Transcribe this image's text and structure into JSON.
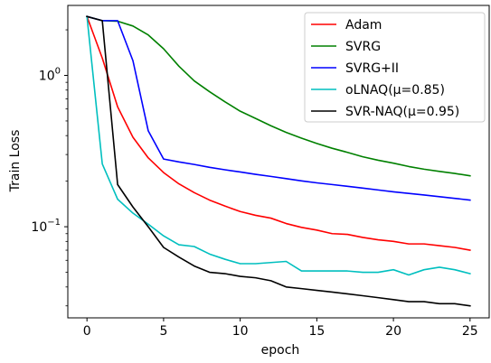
{
  "chart_data": {
    "type": "line",
    "title": "",
    "xlabel": "epoch",
    "ylabel": "Train Loss",
    "xlim": [
      -1.25,
      26.25
    ],
    "ylim": [
      0.025,
      2.9
    ],
    "yscale": "log",
    "grid": false,
    "legend_position": "top-right",
    "x_ticks": [
      0,
      5,
      10,
      15,
      20,
      25
    ],
    "x_tick_labels": [
      "0",
      "5",
      "10",
      "15",
      "20",
      "25"
    ],
    "y_ticks": [
      1,
      0.1
    ],
    "y_tick_labels": [
      {
        "base": "10",
        "exp": "0"
      },
      {
        "base": "10",
        "exp": "−1"
      }
    ],
    "x": [
      0,
      1,
      2,
      3,
      4,
      5,
      6,
      7,
      8,
      9,
      10,
      11,
      12,
      13,
      14,
      15,
      16,
      17,
      18,
      19,
      20,
      21,
      22,
      23,
      24,
      25
    ],
    "series": [
      {
        "name": "Adam",
        "color": "#ff0000",
        "values": [
          2.45,
          1.3,
          0.62,
          0.39,
          0.285,
          0.228,
          0.192,
          0.168,
          0.15,
          0.137,
          0.126,
          0.119,
          0.114,
          0.105,
          0.099,
          0.095,
          0.09,
          0.089,
          0.085,
          0.082,
          0.08,
          0.077,
          0.077,
          0.075,
          0.073,
          0.07
        ]
      },
      {
        "name": "SVRG",
        "color": "#008000",
        "values": [
          2.45,
          2.3,
          2.28,
          2.12,
          1.85,
          1.5,
          1.15,
          0.92,
          0.78,
          0.67,
          0.58,
          0.52,
          0.465,
          0.42,
          0.385,
          0.355,
          0.33,
          0.31,
          0.29,
          0.275,
          0.263,
          0.25,
          0.24,
          0.232,
          0.225,
          0.217
        ]
      },
      {
        "name": "SVRG+II",
        "color": "#0000ff",
        "values": [
          2.45,
          2.3,
          2.3,
          1.25,
          0.43,
          0.28,
          0.268,
          0.258,
          0.247,
          0.238,
          0.23,
          0.222,
          0.215,
          0.208,
          0.201,
          0.195,
          0.19,
          0.185,
          0.18,
          0.175,
          0.17,
          0.166,
          0.162,
          0.158,
          0.154,
          0.15
        ]
      },
      {
        "name": "oLNAQ(μ=0.85)",
        "color": "#00bfbf",
        "values": [
          2.45,
          0.26,
          0.152,
          0.123,
          0.104,
          0.087,
          0.076,
          0.074,
          0.066,
          0.061,
          0.057,
          0.057,
          0.058,
          0.059,
          0.051,
          0.051,
          0.051,
          0.051,
          0.05,
          0.05,
          0.052,
          0.048,
          0.052,
          0.054,
          0.052,
          0.049
        ]
      },
      {
        "name": "SVR-NAQ(μ=0.95)",
        "color": "#000000",
        "values": [
          2.45,
          2.3,
          0.19,
          0.135,
          0.1,
          0.073,
          0.063,
          0.055,
          0.05,
          0.049,
          0.047,
          0.046,
          0.044,
          0.04,
          0.039,
          0.038,
          0.037,
          0.036,
          0.035,
          0.034,
          0.033,
          0.032,
          0.032,
          0.031,
          0.031,
          0.03
        ]
      }
    ]
  }
}
